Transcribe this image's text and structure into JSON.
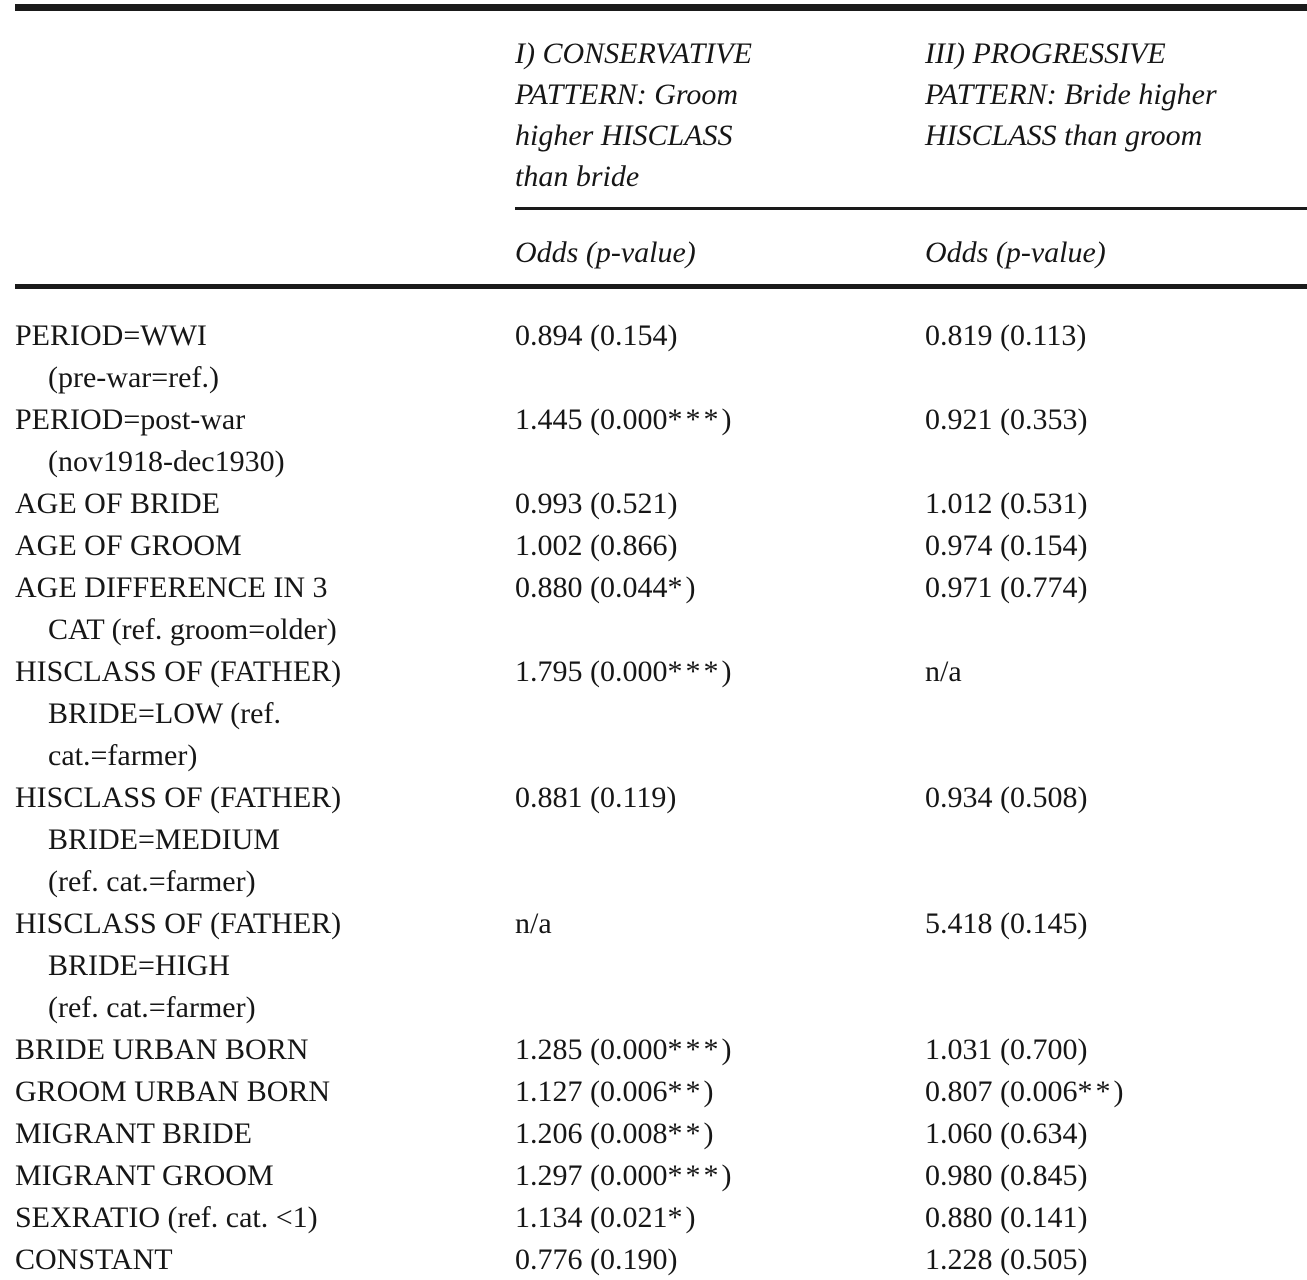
{
  "table": {
    "columns": [
      {
        "id": "conservative",
        "header": "I) CONSERVATIVE PATTERN: Groom higher HISCLASS than bride",
        "header_lines": [
          "I) CONSERVATIVE",
          "PATTERN: Groom",
          "higher HISCLASS",
          "than bride"
        ],
        "subheader": "Odds (p-value)"
      },
      {
        "id": "progressive",
        "header": "III) PROGRESSIVE PATTERN: Bride higher HISCLASS than groom",
        "header_lines": [
          "III) PROGRESSIVE",
          "PATTERN: Bride higher",
          "HISCLASS than groom"
        ],
        "subheader": "Odds (p-value)"
      }
    ],
    "rows": [
      {
        "label_lines": [
          "PERIOD=WWI",
          "(pre-war=ref.)"
        ],
        "conservative": "0.894 (0.154)",
        "progressive": "0.819 (0.113)"
      },
      {
        "label_lines": [
          "PERIOD=post-war",
          "(nov1918-dec1930)"
        ],
        "conservative": "1.445 (0.000***)",
        "progressive": "0.921 (0.353)"
      },
      {
        "label_lines": [
          "AGE OF BRIDE"
        ],
        "conservative": "0.993 (0.521)",
        "progressive": "1.012 (0.531)"
      },
      {
        "label_lines": [
          "AGE OF GROOM"
        ],
        "conservative": "1.002 (0.866)",
        "progressive": "0.974 (0.154)"
      },
      {
        "label_lines": [
          "AGE DIFFERENCE IN 3",
          "CAT (ref. groom=older)"
        ],
        "conservative": "0.880 (0.044*)",
        "progressive": "0.971 (0.774)"
      },
      {
        "label_lines": [
          "HISCLASS OF (FATHER)",
          "BRIDE=LOW (ref.",
          "cat.=farmer)"
        ],
        "conservative": "1.795 (0.000***)",
        "progressive": "n/a"
      },
      {
        "label_lines": [
          "HISCLASS OF (FATHER)",
          "BRIDE=MEDIUM",
          "(ref. cat.=farmer)"
        ],
        "conservative": "0.881 (0.119)",
        "progressive": "0.934 (0.508)"
      },
      {
        "label_lines": [
          "HISCLASS OF (FATHER)",
          "BRIDE=HIGH",
          "(ref. cat.=farmer)"
        ],
        "conservative": "n/a",
        "progressive": "5.418 (0.145)"
      },
      {
        "label_lines": [
          "BRIDE URBAN BORN"
        ],
        "conservative": "1.285 (0.000***)",
        "progressive": "1.031 (0.700)"
      },
      {
        "label_lines": [
          "GROOM URBAN BORN"
        ],
        "conservative": "1.127 (0.006**)",
        "progressive": "0.807 (0.006**)"
      },
      {
        "label_lines": [
          "MIGRANT BRIDE"
        ],
        "conservative": "1.206 (0.008**)",
        "progressive": "1.060 (0.634)"
      },
      {
        "label_lines": [
          "MIGRANT GROOM"
        ],
        "conservative": "1.297 (0.000***)",
        "progressive": "0.980 (0.845)"
      },
      {
        "label_lines": [
          "SEXRATIO (ref. cat. <1)"
        ],
        "conservative": "1.134 (0.021*)",
        "progressive": "0.880 (0.141)"
      },
      {
        "label_lines": [
          "CONSTANT"
        ],
        "conservative": "0.776 (0.190)",
        "progressive": "1.228 (0.505)"
      }
    ],
    "colors": {
      "text": "#161616",
      "rule": "#1a1a1a",
      "background": "#ffffff"
    }
  }
}
